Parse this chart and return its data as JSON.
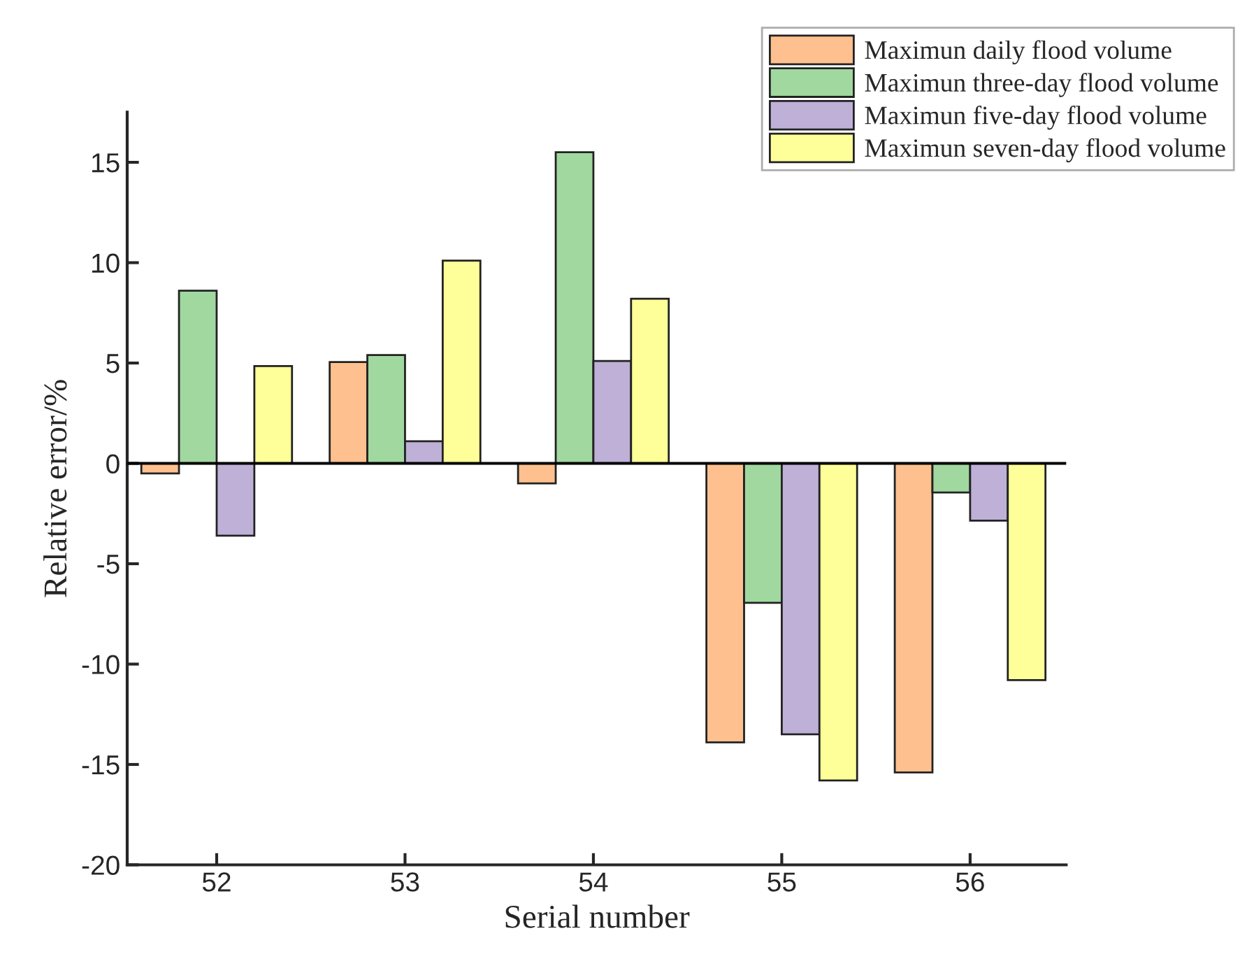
{
  "chart_data": {
    "type": "bar",
    "xlabel": "Serial number",
    "ylabel": "Relative error/%",
    "categories": [
      "52",
      "53",
      "54",
      "55",
      "56"
    ],
    "series": [
      {
        "name": "Maximun daily flood volume",
        "color": "#fdc08e",
        "values": [
          -0.5,
          5.05,
          -1.0,
          -13.9,
          -15.4
        ]
      },
      {
        "name": "Maximun three-day flood volume",
        "color": "#a0d8a0",
        "values": [
          8.6,
          5.4,
          15.5,
          -6.95,
          -1.45
        ]
      },
      {
        "name": "Maximun five-day flood volume",
        "color": "#bfb0d8",
        "values": [
          -3.6,
          1.1,
          5.1,
          -13.5,
          -2.85
        ]
      },
      {
        "name": "Maximun seven-day flood volume",
        "color": "#ffff99",
        "values": [
          4.85,
          10.1,
          8.2,
          -15.8,
          -10.8
        ]
      }
    ],
    "ylim": [
      -20,
      17.5
    ],
    "yticks": [
      -20,
      -15,
      -10,
      -5,
      0,
      5,
      10,
      15
    ],
    "ref_lines": [
      {
        "axis": "y",
        "value": 0,
        "color": "#000000"
      }
    ],
    "grid": false,
    "legend": "top right"
  }
}
